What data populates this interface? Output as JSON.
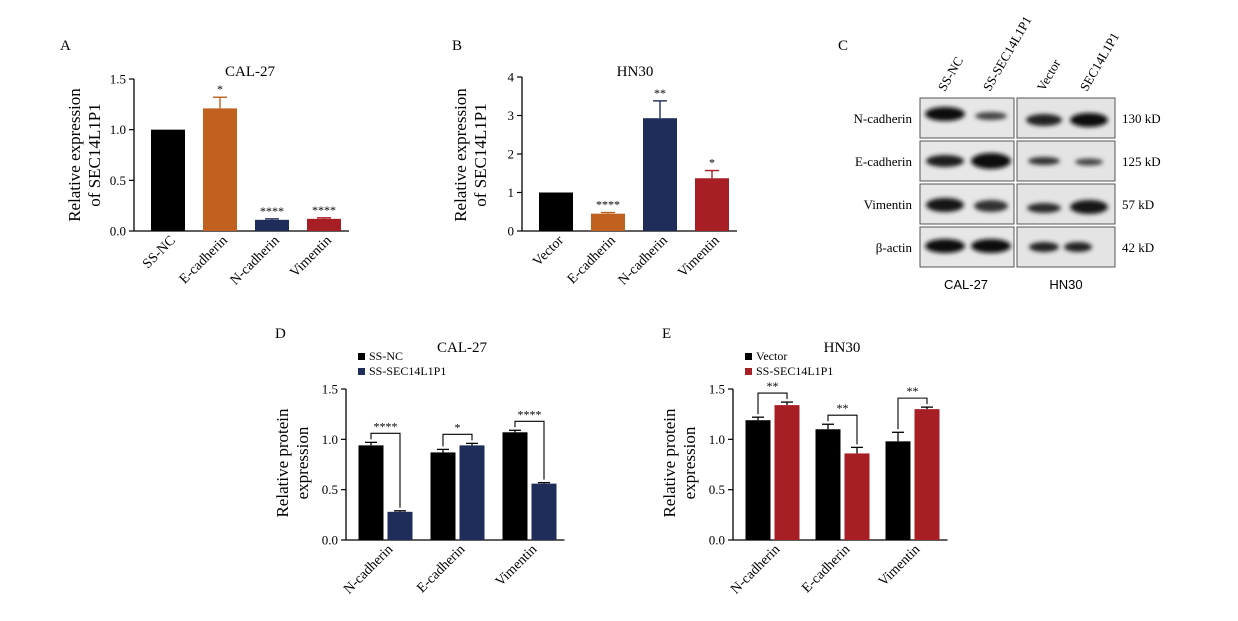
{
  "colors": {
    "black": "#000000",
    "orange": "#C0611F",
    "navy": "#1F2D5A",
    "red": "#A71E24"
  },
  "panel_letters": [
    "A",
    "B",
    "C",
    "D",
    "E"
  ],
  "chart_data": [
    {
      "panel": "A",
      "type": "bar",
      "title": "CAL-27",
      "ylabel_lines": [
        "Relative expression",
        "of SEC14L1P1"
      ],
      "ylim": [
        0,
        1.5
      ],
      "yticks": [
        "0.0",
        "0.5",
        "1.0",
        "1.5"
      ],
      "categories": [
        "SS-NC",
        "E-cadherin",
        "N-cadherin",
        "Vimentin"
      ],
      "values": [
        1.0,
        1.21,
        0.11,
        0.12
      ],
      "errors": [
        0,
        0.11,
        0.01,
        0.01
      ],
      "colors": [
        "#000000",
        "#C0611F",
        "#1F2D5A",
        "#A71E24"
      ],
      "significance": [
        "",
        "*",
        "****",
        "****"
      ]
    },
    {
      "panel": "B",
      "type": "bar",
      "title": "HN30",
      "ylabel_lines": [
        "Relative expression",
        "of SEC14L1P1"
      ],
      "ylim": [
        0,
        4
      ],
      "yticks": [
        "0",
        "1",
        "2",
        "3",
        "4"
      ],
      "categories": [
        "Vector",
        "E-cadherin",
        "N-cadherin",
        "Vimentin"
      ],
      "values": [
        1.0,
        0.45,
        2.93,
        1.37
      ],
      "errors": [
        0,
        0.03,
        0.45,
        0.2
      ],
      "colors": [
        "#000000",
        "#C0611F",
        "#1F2D5A",
        "#A71E24"
      ],
      "significance": [
        "",
        "****",
        "**",
        "*"
      ]
    },
    {
      "panel": "D",
      "type": "bar",
      "title": "CAL-27",
      "ylabel_lines": [
        "Relative protein",
        "expression"
      ],
      "ylim": [
        0,
        1.5
      ],
      "yticks": [
        "0.0",
        "0.5",
        "1.0",
        "1.5"
      ],
      "categories": [
        "N-cadherin",
        "E-cadherin",
        "Vimentin"
      ],
      "series": [
        {
          "name": "SS-NC",
          "color": "#000000",
          "values": [
            0.94,
            0.87,
            1.07
          ],
          "errors": [
            0.03,
            0.03,
            0.02
          ]
        },
        {
          "name": "SS-SEC14L1P1",
          "color": "#1F2D5A",
          "values": [
            0.28,
            0.94,
            0.56
          ],
          "errors": [
            0.01,
            0.02,
            0.01
          ]
        }
      ],
      "significance": [
        "****",
        "*",
        "****"
      ],
      "legend": "top-left"
    },
    {
      "panel": "E",
      "type": "bar",
      "title": "HN30",
      "ylabel_lines": [
        "Relative protein",
        "expression"
      ],
      "ylim": [
        0,
        1.5
      ],
      "yticks": [
        "0.0",
        "0.5",
        "1.0",
        "1.5"
      ],
      "categories": [
        "N-cadherin",
        "E-cadherin",
        "Vimentin"
      ],
      "series": [
        {
          "name": "Vector",
          "color": "#000000",
          "values": [
            1.19,
            1.1,
            0.98
          ],
          "errors": [
            0.03,
            0.05,
            0.09
          ]
        },
        {
          "name": "SS-SEC14L1P1",
          "color": "#A71E24",
          "values": [
            1.34,
            0.86,
            1.3
          ],
          "errors": [
            0.03,
            0.06,
            0.02
          ]
        }
      ],
      "significance": [
        "**",
        "**",
        "**"
      ],
      "legend": "top-left"
    }
  ],
  "western_blot": {
    "panel": "C",
    "lanes": [
      "SS-NC",
      "SS-SEC14L1P1",
      "Vector",
      "SEC14L1P1"
    ],
    "proteins": [
      "N-cadherin",
      "E-cadherin",
      "Vimentin",
      "β-actin"
    ],
    "sizes": [
      "130 kD",
      "125 kD",
      "57 kD",
      "42 kD"
    ],
    "groups": [
      "CAL-27",
      "HN30"
    ]
  }
}
